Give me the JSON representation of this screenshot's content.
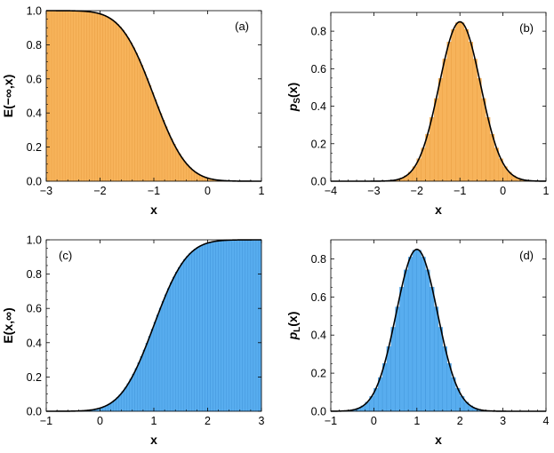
{
  "colors": {
    "orange": "#f7b35a",
    "orange_edge": "#e79a3c",
    "blue": "#58adef",
    "blue_edge": "#3a8fd6",
    "curve": "#000000"
  },
  "chart_data": [
    {
      "type": "bar",
      "panel": "(a)",
      "xlabel": "x",
      "ylabel": "E(−∞,x)",
      "xlim": [
        -3,
        1
      ],
      "ylim": [
        0,
        1.0
      ],
      "x_ticks": [
        "−3",
        "−2",
        "−1",
        "0",
        "1"
      ],
      "y_ticks": [
        "0.0",
        "0.2",
        "0.4",
        "0.6",
        "0.8",
        "1.0"
      ],
      "fill": "orange",
      "histogram": {
        "x_start": -3.0,
        "bin_width": 0.05,
        "extent": [
          -3.0,
          1.0
        ]
      },
      "curve": {
        "kind": "cdf_left",
        "mu": -1.0,
        "sigma": 0.48
      },
      "grid": false,
      "legend": "none"
    },
    {
      "type": "bar",
      "panel": "(b)",
      "xlabel": "x",
      "ylabel_main": "p",
      "ylabel_sub": "S",
      "ylabel_tail": "(x)",
      "xlim": [
        -4,
        1
      ],
      "ylim": [
        0,
        0.9
      ],
      "x_ticks": [
        "−4",
        "−3",
        "−2",
        "−1",
        "0",
        "1"
      ],
      "y_ticks": [
        "0.0",
        "0.2",
        "0.4",
        "0.6",
        "0.8"
      ],
      "fill": "orange",
      "histogram": {
        "x_start": -4.0,
        "bin_width": 0.1,
        "extent": [
          -4.0,
          1.0
        ]
      },
      "curve": {
        "kind": "pdf",
        "mu": -1.0,
        "sigma": 0.48,
        "peak": 0.85
      },
      "grid": false,
      "legend": "none"
    },
    {
      "type": "bar",
      "panel": "(c)",
      "xlabel": "x",
      "ylabel": "E(x,∞)",
      "xlim": [
        -1,
        3
      ],
      "ylim": [
        0,
        1.0
      ],
      "x_ticks": [
        "−1",
        "0",
        "1",
        "2",
        "3"
      ],
      "y_ticks": [
        "0.0",
        "0.2",
        "0.4",
        "0.6",
        "0.8",
        "1.0"
      ],
      "fill": "blue",
      "histogram": {
        "x_start": -1.0,
        "bin_width": 0.05,
        "extent": [
          -1.0,
          3.0
        ]
      },
      "curve": {
        "kind": "cdf_right",
        "mu": 1.0,
        "sigma": 0.48
      },
      "grid": false,
      "legend": "none"
    },
    {
      "type": "bar",
      "panel": "(d)",
      "xlabel": "x",
      "ylabel_main": "p",
      "ylabel_sub": "L",
      "ylabel_tail": "(x)",
      "xlim": [
        -1,
        4
      ],
      "ylim": [
        0,
        0.9
      ],
      "x_ticks": [
        "−1",
        "0",
        "1",
        "2",
        "3",
        "4"
      ],
      "y_ticks": [
        "0.0",
        "0.2",
        "0.4",
        "0.6",
        "0.8"
      ],
      "fill": "blue",
      "histogram": {
        "x_start": -1.0,
        "bin_width": 0.1,
        "extent": [
          -1.0,
          4.0
        ]
      },
      "curve": {
        "kind": "pdf",
        "mu": 1.0,
        "sigma": 0.48,
        "peak": 0.85
      },
      "grid": false,
      "legend": "none"
    }
  ]
}
